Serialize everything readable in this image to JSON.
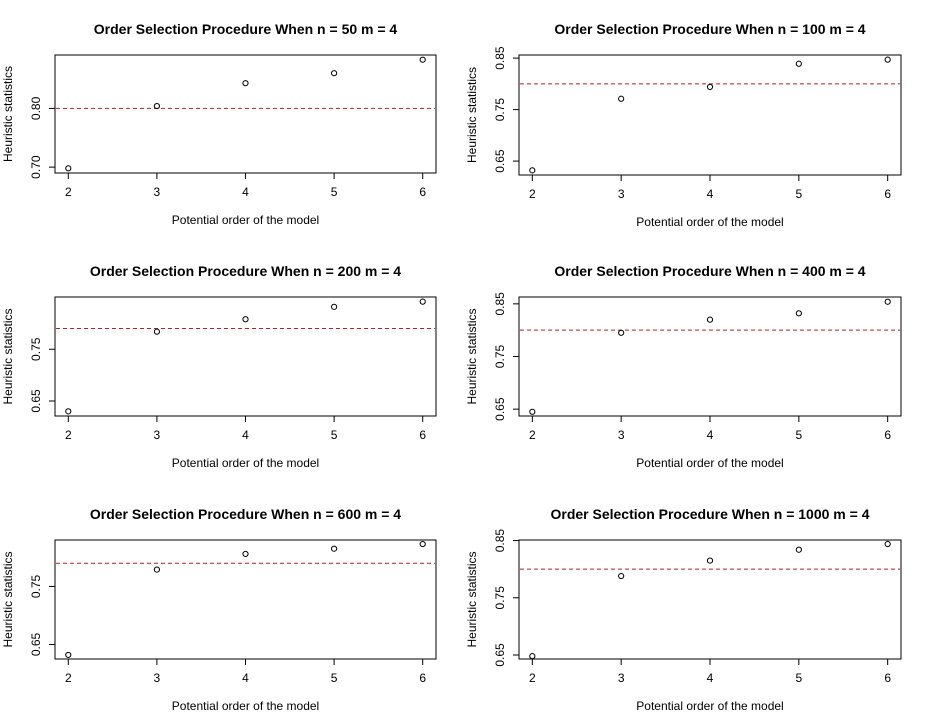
{
  "chart_data": [
    {
      "type": "scatter",
      "title": "Order Selection Procedure When n =  50 m =  4",
      "xlabel": "Potential order of the model",
      "ylabel": "Heuristic statistics",
      "x": [
        2,
        3,
        4,
        5,
        6
      ],
      "y": [
        0.698,
        0.804,
        0.843,
        0.86,
        0.883
      ],
      "reference_line": 0.8,
      "reference_color": "#b22222",
      "xlim": [
        1.85,
        6.15
      ],
      "ylim": [
        0.69,
        0.891
      ],
      "x_ticks": [
        2,
        3,
        4,
        5,
        6
      ],
      "y_ticks": [
        0.7,
        0.8
      ]
    },
    {
      "type": "scatter",
      "title": "Order Selection Procedure When n =  100 m =  4",
      "xlabel": "Potential order of the model",
      "ylabel": "Heuristic statistics",
      "x": [
        2,
        3,
        4,
        5,
        6
      ],
      "y": [
        0.632,
        0.771,
        0.794,
        0.839,
        0.847
      ],
      "reference_line": 0.8,
      "reference_color": "#b22222",
      "xlim": [
        1.85,
        6.15
      ],
      "ylim": [
        0.623,
        0.856
      ],
      "x_ticks": [
        2,
        3,
        4,
        5,
        6
      ],
      "y_ticks": [
        0.65,
        0.75,
        0.85
      ]
    },
    {
      "type": "scatter",
      "title": "Order Selection Procedure When n =  200 m =  4",
      "xlabel": "Potential order of the model",
      "ylabel": "Heuristic statistics",
      "x": [
        2,
        3,
        4,
        5,
        6
      ],
      "y": [
        0.63,
        0.784,
        0.808,
        0.832,
        0.842
      ],
      "reference_line": 0.79,
      "reference_color": "#b22222",
      "xlim": [
        1.85,
        6.15
      ],
      "ylim": [
        0.621,
        0.851
      ],
      "x_ticks": [
        2,
        3,
        4,
        5,
        6
      ],
      "y_ticks": [
        0.65,
        0.75
      ]
    },
    {
      "type": "scatter",
      "title": "Order Selection Procedure When n =  400 m =  4",
      "xlabel": "Potential order of the model",
      "ylabel": "Heuristic statistics",
      "x": [
        2,
        3,
        4,
        5,
        6
      ],
      "y": [
        0.645,
        0.795,
        0.82,
        0.832,
        0.854
      ],
      "reference_line": 0.8,
      "reference_color": "#b22222",
      "xlim": [
        1.85,
        6.15
      ],
      "ylim": [
        0.637,
        0.863
      ],
      "x_ticks": [
        2,
        3,
        4,
        5,
        6
      ],
      "y_ticks": [
        0.65,
        0.75,
        0.85
      ]
    },
    {
      "type": "scatter",
      "title": "Order Selection Procedure When n =  600 m =  4",
      "xlabel": "Potential order of the model",
      "ylabel": "Heuristic statistics",
      "x": [
        2,
        3,
        4,
        5,
        6
      ],
      "y": [
        0.632,
        0.779,
        0.806,
        0.815,
        0.823
      ],
      "reference_line": 0.79,
      "reference_color": "#b22222",
      "xlim": [
        1.85,
        6.15
      ],
      "ylim": [
        0.625,
        0.83
      ],
      "x_ticks": [
        2,
        3,
        4,
        5,
        6
      ],
      "y_ticks": [
        0.65,
        0.75
      ]
    },
    {
      "type": "scatter",
      "title": "Order Selection Procedure When n =  1000 m =  4",
      "xlabel": "Potential order of the model",
      "ylabel": "Heuristic statistics",
      "x": [
        2,
        3,
        4,
        5,
        6
      ],
      "y": [
        0.648,
        0.788,
        0.815,
        0.834,
        0.844
      ],
      "reference_line": 0.8,
      "reference_color": "#b22222",
      "xlim": [
        1.85,
        6.15
      ],
      "ylim": [
        0.643,
        0.851
      ],
      "x_ticks": [
        2,
        3,
        4,
        5,
        6
      ],
      "y_ticks": [
        0.65,
        0.75,
        0.85
      ]
    }
  ]
}
